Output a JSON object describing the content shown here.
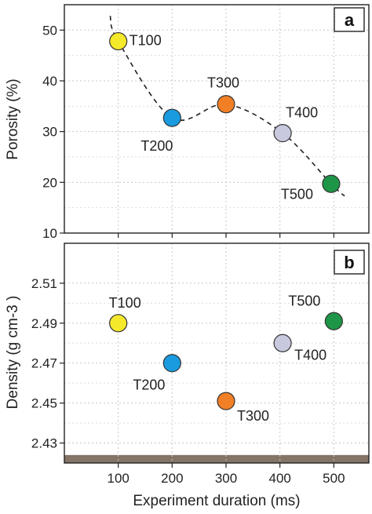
{
  "figure": {
    "xlabel": "Experiment duration (ms)",
    "xticks": [
      100,
      200,
      300,
      400,
      500
    ],
    "xlim": [
      0,
      565
    ]
  },
  "chart_data": [
    {
      "type": "scatter",
      "panel": "a",
      "ylabel": "Porosity (%)",
      "ylim": [
        10,
        55
      ],
      "yticks": [
        10,
        20,
        30,
        40,
        50
      ],
      "grid": true,
      "trend": "dashed",
      "points": [
        {
          "label": "T100",
          "x": 100,
          "y": 47.8,
          "color": "#f5e92c"
        },
        {
          "label": "T200",
          "x": 200,
          "y": 32.7,
          "color": "#1a9be0"
        },
        {
          "label": "T300",
          "x": 300,
          "y": 35.4,
          "color": "#f07f26"
        },
        {
          "label": "T400",
          "x": 405,
          "y": 29.7,
          "color": "#c8c8df"
        },
        {
          "label": "T500",
          "x": 495,
          "y": 19.7,
          "color": "#1e9547"
        }
      ]
    },
    {
      "type": "scatter",
      "panel": "b",
      "ylabel": "Density (g cm-3 )",
      "ylim": [
        2.42,
        2.53
      ],
      "yticks": [
        2.43,
        2.45,
        2.47,
        2.49,
        2.51
      ],
      "grid": true,
      "points": [
        {
          "label": "T100",
          "x": 100,
          "y": 2.49,
          "color": "#f5e92c"
        },
        {
          "label": "T200",
          "x": 200,
          "y": 2.47,
          "color": "#1a9be0"
        },
        {
          "label": "T300",
          "x": 300,
          "y": 2.451,
          "color": "#f07f26"
        },
        {
          "label": "T400",
          "x": 405,
          "y": 2.48,
          "color": "#c8c8df"
        },
        {
          "label": "T500",
          "x": 500,
          "y": 2.491,
          "color": "#1e9547"
        }
      ],
      "band": {
        "from": 2.42,
        "to": 2.424,
        "color": "#857567"
      }
    }
  ]
}
